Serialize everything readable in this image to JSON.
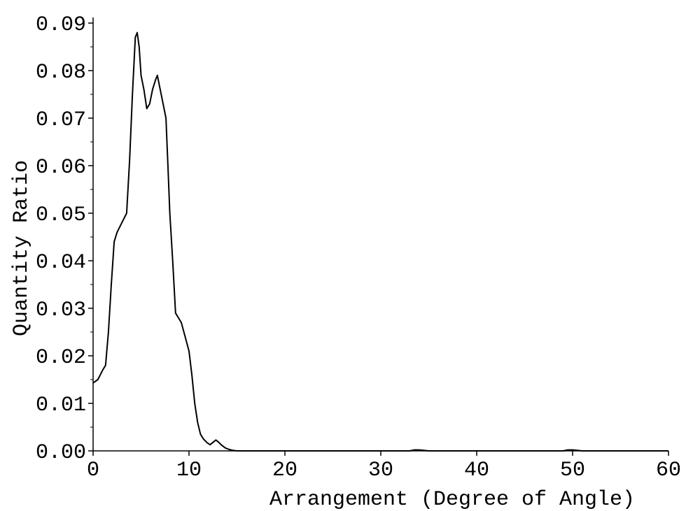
{
  "chart_data": {
    "type": "line",
    "title": "",
    "xlabel": "Arrangement (Degree of Angle)",
    "ylabel": "Quantity Ratio",
    "xlim": [
      0,
      60
    ],
    "ylim": [
      0,
      0.09
    ],
    "x_ticks": [
      "0",
      "10",
      "20",
      "30",
      "40",
      "50",
      "60"
    ],
    "y_ticks": [
      "0.00",
      "0.01",
      "0.02",
      "0.03",
      "0.04",
      "0.05",
      "0.06",
      "0.07",
      "0.08",
      "0.09"
    ],
    "grid": false,
    "legend": "none",
    "line_color": "#000000",
    "series": [
      {
        "x": [
          0,
          0.5,
          1,
          1.3,
          1.6,
          1.9,
          2.2,
          2.5,
          3,
          3.5,
          3.8,
          4.1,
          4.4,
          4.6,
          4.8,
          5.0,
          5.3,
          5.6,
          5.9,
          6.2,
          6.5,
          6.7,
          7.0,
          7.3,
          7.6,
          7.8,
          8.0,
          8.3,
          8.6,
          8.9,
          9.2,
          9.6,
          10.0,
          10.3,
          10.6,
          10.9,
          11.2,
          11.5,
          11.9,
          12.2,
          12.5,
          12.8,
          13.1,
          13.4,
          13.8,
          14.2,
          14.6,
          15.0,
          20,
          30,
          33,
          33.5,
          34,
          34.5,
          35,
          40,
          49,
          49.5,
          50,
          50.5,
          51,
          60
        ],
        "y": [
          0.0143,
          0.015,
          0.017,
          0.018,
          0.025,
          0.035,
          0.044,
          0.046,
          0.048,
          0.05,
          0.061,
          0.075,
          0.087,
          0.088,
          0.085,
          0.079,
          0.076,
          0.072,
          0.073,
          0.076,
          0.078,
          0.079,
          0.076,
          0.073,
          0.07,
          0.06,
          0.05,
          0.04,
          0.029,
          0.028,
          0.027,
          0.024,
          0.021,
          0.016,
          0.01,
          0.006,
          0.0035,
          0.0025,
          0.0017,
          0.0013,
          0.0018,
          0.0023,
          0.0018,
          0.0012,
          0.0006,
          0.0003,
          0.0001,
          0,
          0,
          0,
          0,
          0.0002,
          0.0002,
          0.0001,
          0,
          0,
          0,
          0.0002,
          0.0002,
          0.0001,
          0,
          0
        ]
      }
    ]
  }
}
